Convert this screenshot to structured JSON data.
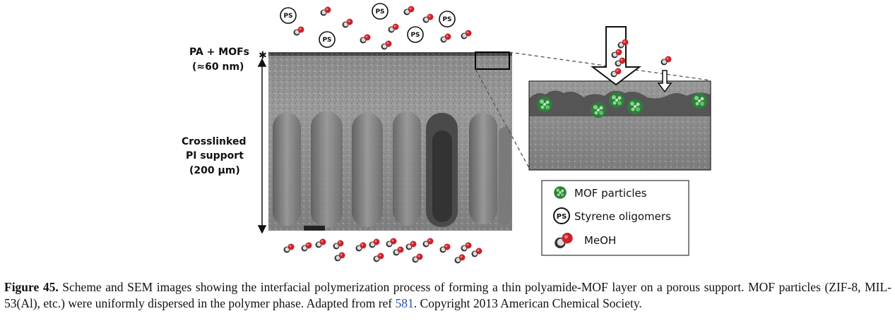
{
  "figure": {
    "label_pa_mofs": "PA + MOFs",
    "label_thickness": "(≈60 nm)",
    "label_support_1": "Crosslinked",
    "label_support_2": "PI support",
    "label_support_3": "(200 µm)",
    "ps_symbol": "PS",
    "legend": {
      "mof": "MOF particles",
      "ps": "Styrene oligomers",
      "meoh": "MeOH"
    }
  },
  "caption": {
    "figure_number": "Figure 45.",
    "text_1": " Scheme and SEM images showing the interfacial polymerization process of forming a thin polyamide-MOF layer on a porous support. MOF particles (ZIF-8, MIL-53(Al), etc.) were uniformly dispersed in the polymer phase. Adapted from ref ",
    "ref_number": "581",
    "text_2": ". Copyright 2013 American Chemical Society."
  },
  "colors": {
    "meoh_red": "#c8232c",
    "mof_green": "#3fa34d",
    "layer_dark": "#555555",
    "link_blue": "#2a55a8"
  }
}
